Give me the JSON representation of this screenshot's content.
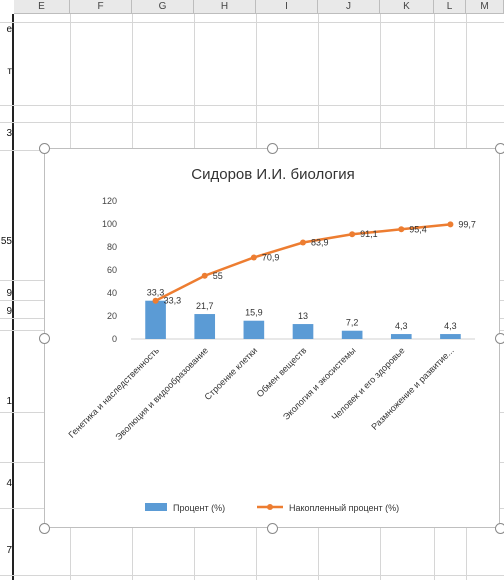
{
  "sheet": {
    "columns": [
      "E",
      "F",
      "G",
      "H",
      "I",
      "J",
      "K",
      "L",
      "M"
    ],
    "left_cells": [
      "е",
      "т",
      "3",
      "55",
      "9",
      "9",
      "1",
      "4",
      "7"
    ]
  },
  "chart_data": {
    "type": "bar",
    "title": "Сидоров И.И. биология",
    "categories": [
      "Генетика и наследственность",
      "Эволюция и видообразование",
      "Строение клетки",
      "Обмен веществ",
      "Экология и экосистемы",
      "Человек и его здоровье",
      "Размножение и развитие..."
    ],
    "series": [
      {
        "name": "Процент (%)",
        "kind": "bar",
        "color": "#5b9bd5",
        "values": [
          33.3,
          21.7,
          15.9,
          13,
          7.2,
          4.3,
          4.3
        ],
        "labels": [
          "33,3",
          "21,7",
          "15,9",
          "13",
          "7,2",
          "4,3",
          "4,3"
        ]
      },
      {
        "name": "Накопленный процент (%)",
        "kind": "line",
        "color": "#ed7d31",
        "values": [
          33.3,
          55,
          70.9,
          83.9,
          91.1,
          95.4,
          99.7
        ],
        "labels": [
          "33,3",
          "55",
          "70,9",
          "83,9",
          "91,1",
          "95,4",
          "99,7"
        ]
      }
    ],
    "yticks": [
      "0",
      "20",
      "40",
      "60",
      "80",
      "100",
      "120"
    ],
    "ylim": [
      0,
      120
    ],
    "grid": false,
    "legend": "bottom"
  }
}
